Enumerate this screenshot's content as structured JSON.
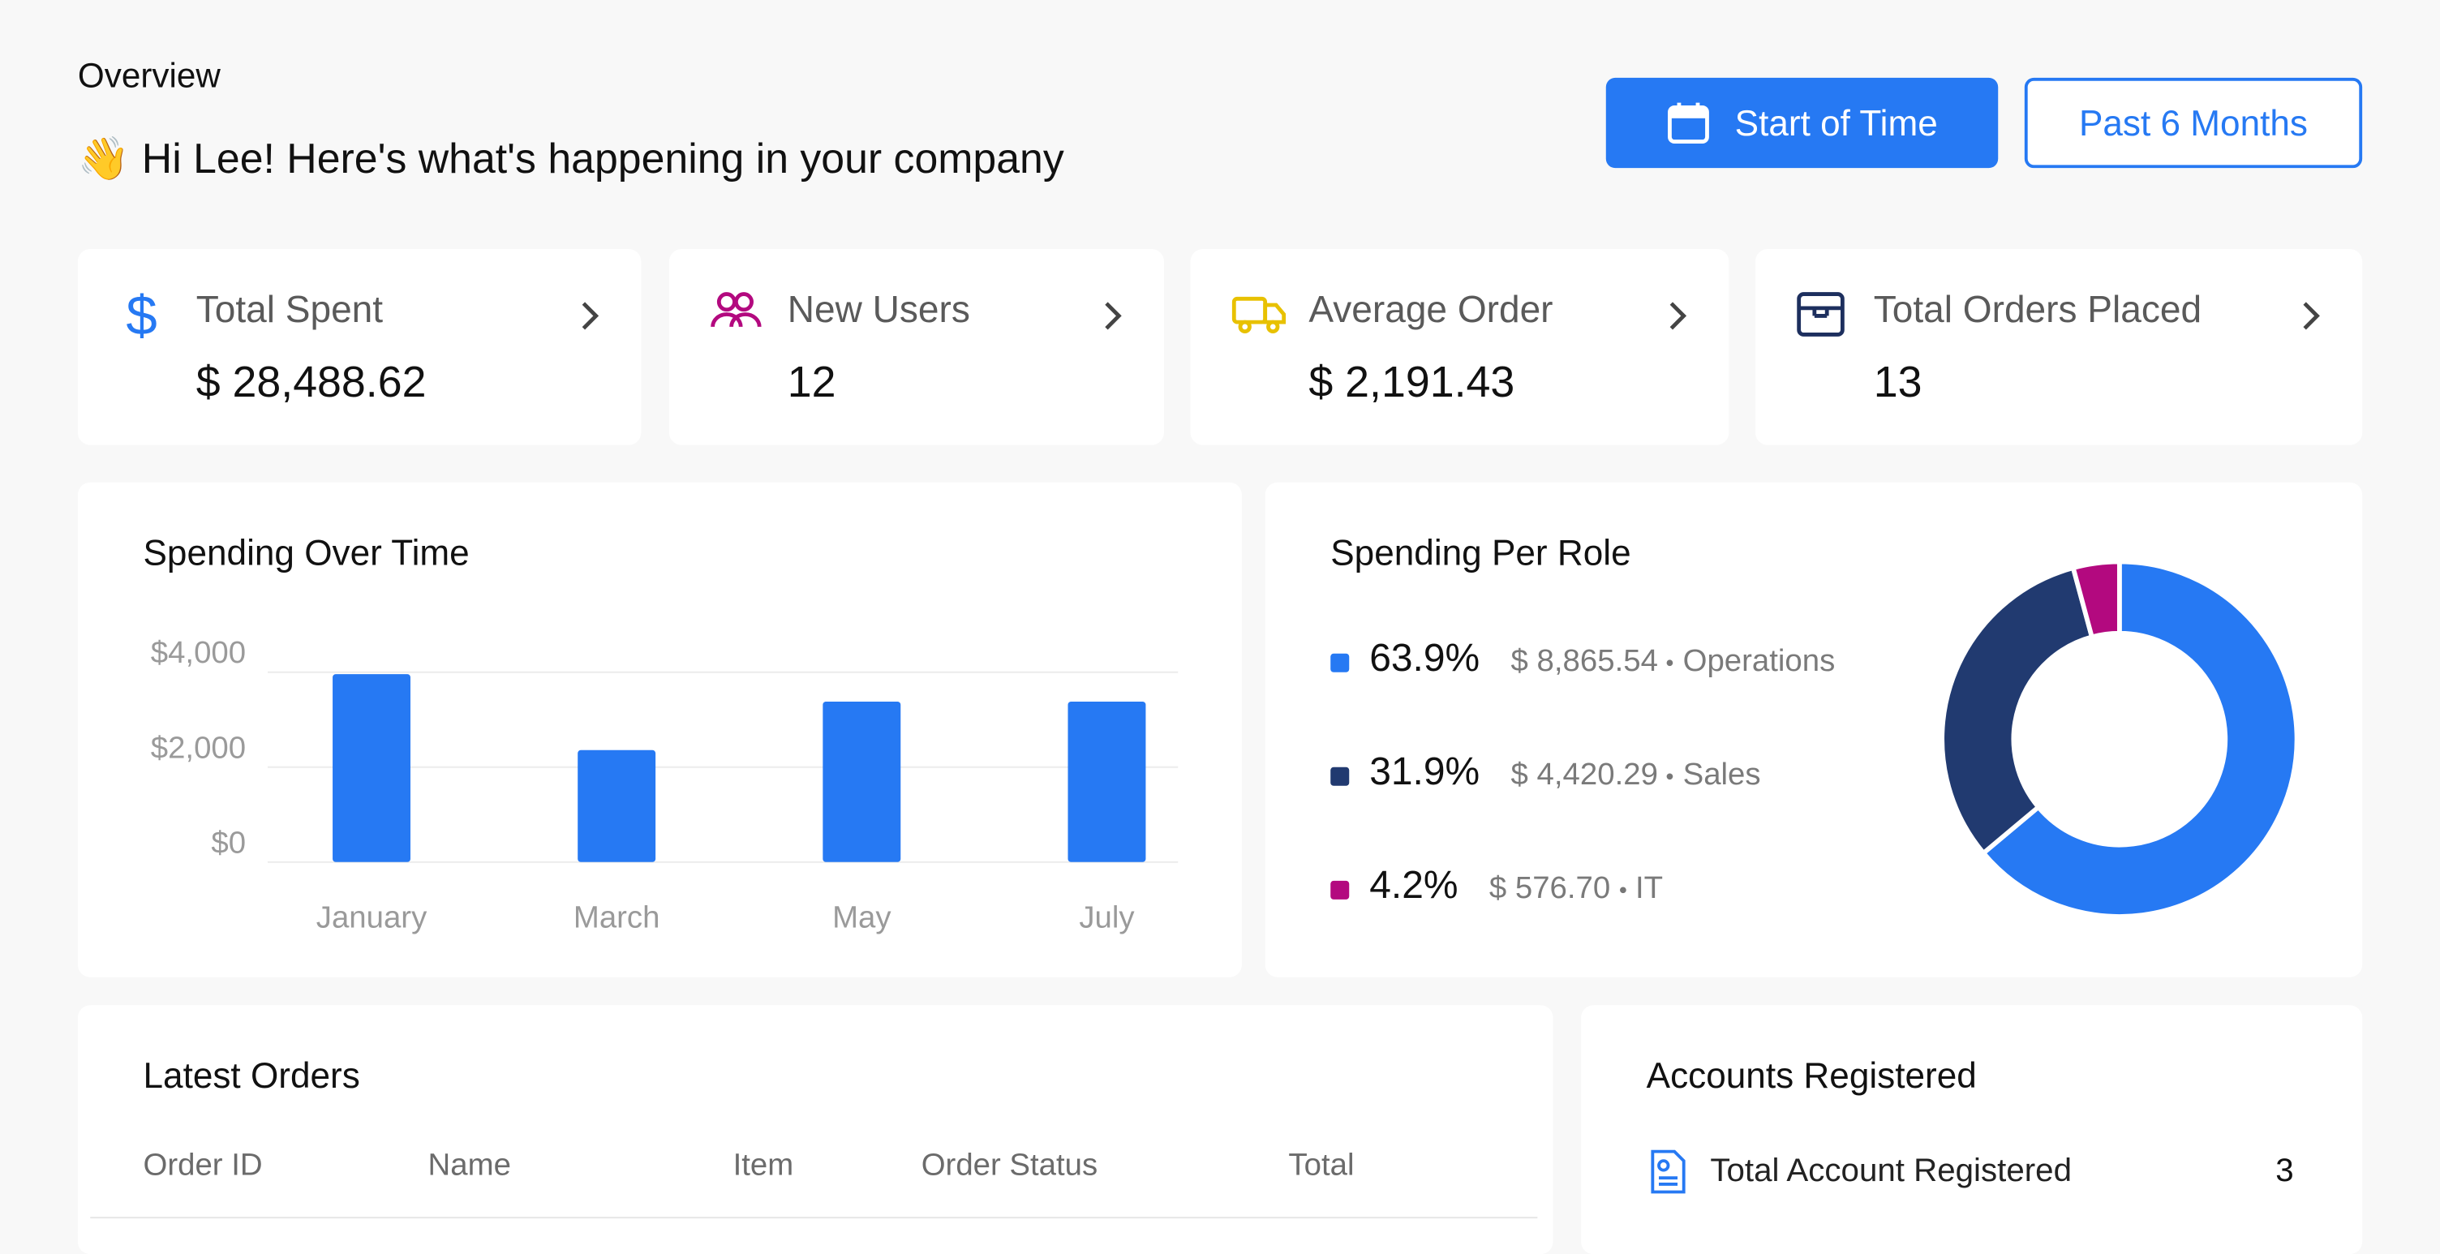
{
  "header": {
    "title": "Overview",
    "greeting": "👋 Hi Lee! Here's what's happening in your company"
  },
  "buttons": [
    "Start of Time",
    "Past 6 Months"
  ],
  "stats": [
    {
      "label": "Total Spent",
      "value": "$ 28,488.62"
    },
    {
      "label": "New Users",
      "value": "12"
    },
    {
      "label": "Average Order",
      "value": "$ 2,191.43"
    },
    {
      "label": "Total Orders Placed",
      "value": "13"
    }
  ],
  "chart_data": [
    {
      "type": "bar",
      "title": "Spending Over Time",
      "categories": [
        "January",
        "March",
        "May",
        "July"
      ],
      "values": [
        3960,
        2360,
        3380,
        3380
      ],
      "color": "#2679f3",
      "ylim": [
        0,
        4000
      ],
      "yticks": [
        {
          "value": 0,
          "label": "$0"
        },
        {
          "value": 2000,
          "label": "$2,000"
        },
        {
          "value": 4000,
          "label": "$4,000"
        }
      ],
      "grid": true
    },
    {
      "type": "pie",
      "title": "Spending Per Role",
      "categories": [
        "Operations",
        "Sales",
        "IT"
      ],
      "values": [
        63.9,
        31.9,
        4.2
      ],
      "value_labels": [
        "63.9%",
        "31.9%",
        "4.2%"
      ],
      "amounts": [
        "$ 8,865.54",
        "$ 4,420.29",
        "$ 576.70"
      ],
      "colors": [
        "#2679f3",
        "#213a70",
        "#b3097f"
      ]
    }
  ],
  "latest_orders": {
    "title": "Latest Orders",
    "columns": [
      "Order ID",
      "Name",
      "Item",
      "Order Status",
      "Total"
    ]
  },
  "accounts": {
    "title": "Accounts Registered",
    "rows": [
      {
        "label": "Total Account Registered",
        "value": "3"
      }
    ]
  }
}
